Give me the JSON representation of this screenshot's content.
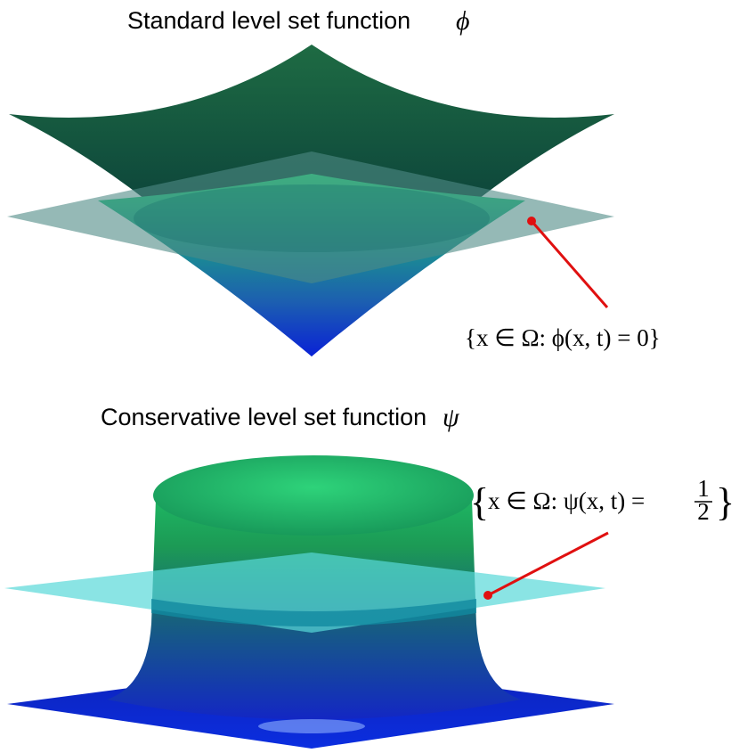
{
  "top": {
    "title": "Standard level set function",
    "symbol": "ϕ",
    "annotation": "{x ∈ Ω: ϕ(x, t) = 0}"
  },
  "bottom": {
    "title": "Conservative level set function",
    "symbol": "ψ",
    "annotation_open": "{",
    "annotation": "x ∈ Ω: ψ(x, t) =",
    "numerator": "1",
    "denominator": "2",
    "annotation_close": "}"
  }
}
